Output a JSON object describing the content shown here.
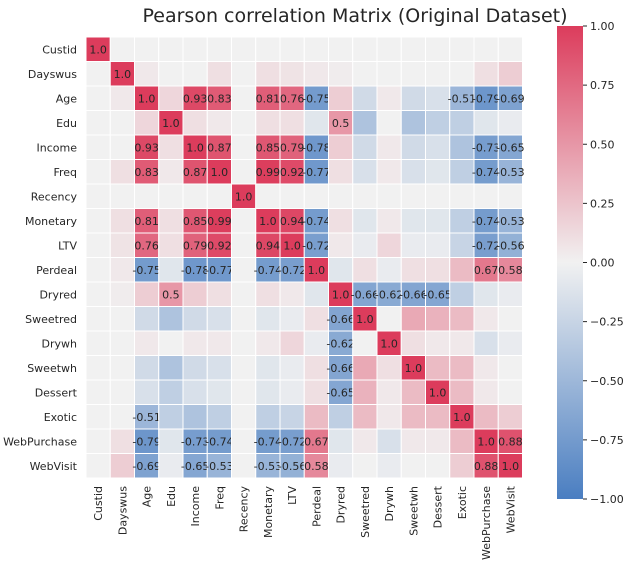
{
  "chart_data": {
    "type": "heatmap",
    "title": "Pearson correlation Matrix (Original Dataset)",
    "labels": [
      "Custid",
      "Dayswus",
      "Age",
      "Edu",
      "Income",
      "Freq",
      "Recency",
      "Monetary",
      "LTV",
      "Perdeal",
      "Dryred",
      "Sweetred",
      "Drywh",
      "Sweetwh",
      "Dessert",
      "Exotic",
      "WebPurchase",
      "WebVisit"
    ],
    "values": [
      [
        1.0,
        0.0,
        0.0,
        0.0,
        0.0,
        0.0,
        0.0,
        0.0,
        0.0,
        0.0,
        0.0,
        0.0,
        0.0,
        0.0,
        0.0,
        0.0,
        0.0,
        0.0
      ],
      [
        0.0,
        1.0,
        0.05,
        0.0,
        0.0,
        0.1,
        0.0,
        0.1,
        0.08,
        0.05,
        0.03,
        0.0,
        0.0,
        0.0,
        0.0,
        0.0,
        0.1,
        0.2
      ],
      [
        0.0,
        0.05,
        1.0,
        0.15,
        0.93,
        0.83,
        0.0,
        0.81,
        0.76,
        -0.75,
        0.2,
        -0.2,
        0.05,
        -0.2,
        -0.15,
        -0.51,
        -0.79,
        -0.69
      ],
      [
        0.0,
        0.0,
        0.15,
        1.0,
        0.1,
        0.05,
        0.0,
        0.1,
        0.1,
        -0.1,
        0.5,
        -0.4,
        0.0,
        -0.4,
        -0.3,
        -0.3,
        -0.1,
        -0.05
      ],
      [
        0.0,
        0.0,
        0.93,
        0.1,
        1.0,
        0.87,
        0.0,
        0.85,
        0.79,
        -0.78,
        0.2,
        -0.2,
        0.05,
        -0.2,
        -0.15,
        -0.4,
        -0.73,
        -0.65
      ],
      [
        0.0,
        0.1,
        0.83,
        0.05,
        0.87,
        1.0,
        0.0,
        0.99,
        0.92,
        -0.77,
        0.1,
        -0.15,
        0.05,
        -0.15,
        -0.1,
        -0.3,
        -0.74,
        -0.53
      ],
      [
        0.0,
        0.0,
        0.0,
        0.0,
        0.0,
        0.0,
        1.0,
        0.0,
        0.0,
        0.0,
        0.0,
        0.0,
        0.0,
        0.0,
        0.0,
        0.0,
        0.0,
        0.0
      ],
      [
        0.0,
        0.1,
        0.81,
        0.1,
        0.85,
        0.99,
        0.0,
        1.0,
        0.94,
        -0.74,
        0.1,
        -0.1,
        0.05,
        -0.1,
        -0.1,
        -0.3,
        -0.74,
        -0.53
      ],
      [
        0.0,
        0.08,
        0.76,
        0.1,
        0.79,
        0.92,
        0.0,
        0.94,
        1.0,
        -0.72,
        0.05,
        -0.05,
        0.15,
        -0.05,
        -0.05,
        -0.25,
        -0.72,
        -0.56
      ],
      [
        0.0,
        0.05,
        -0.75,
        -0.1,
        -0.78,
        -0.77,
        0.0,
        -0.74,
        -0.72,
        1.0,
        -0.1,
        0.1,
        -0.05,
        0.1,
        0.1,
        0.3,
        0.67,
        0.58
      ],
      [
        0.0,
        0.03,
        0.2,
        0.5,
        0.2,
        0.1,
        0.0,
        0.1,
        0.05,
        -0.1,
        1.0,
        -0.66,
        -0.62,
        -0.66,
        -0.65,
        -0.3,
        -0.1,
        -0.05
      ],
      [
        0.0,
        0.0,
        -0.2,
        -0.4,
        -0.2,
        -0.15,
        0.0,
        -0.1,
        -0.05,
        0.1,
        -0.66,
        1.0,
        0.0,
        0.4,
        0.35,
        0.3,
        0.05,
        0.0
      ],
      [
        0.0,
        0.0,
        0.05,
        0.0,
        0.05,
        0.05,
        0.0,
        0.05,
        0.15,
        -0.05,
        -0.62,
        0.0,
        1.0,
        0.1,
        0.05,
        0.05,
        -0.15,
        -0.05
      ],
      [
        0.0,
        0.0,
        -0.2,
        -0.4,
        -0.2,
        -0.15,
        0.0,
        -0.1,
        -0.05,
        0.1,
        -0.66,
        0.4,
        0.1,
        1.0,
        0.3,
        0.3,
        0.05,
        0.0
      ],
      [
        0.0,
        0.0,
        -0.15,
        -0.3,
        -0.15,
        -0.1,
        0.0,
        -0.1,
        -0.05,
        0.1,
        -0.65,
        0.35,
        0.05,
        0.3,
        1.0,
        0.3,
        0.05,
        0.0
      ],
      [
        0.0,
        0.0,
        -0.51,
        -0.3,
        -0.4,
        -0.3,
        0.0,
        -0.3,
        -0.25,
        0.3,
        -0.3,
        0.3,
        0.05,
        0.3,
        0.3,
        1.0,
        0.3,
        0.2
      ],
      [
        0.0,
        0.1,
        -0.79,
        -0.1,
        -0.73,
        -0.74,
        0.0,
        -0.74,
        -0.72,
        0.67,
        -0.1,
        0.05,
        -0.15,
        0.05,
        0.05,
        0.3,
        1.0,
        0.88
      ],
      [
        0.0,
        0.2,
        -0.69,
        -0.05,
        -0.65,
        -0.53,
        0.0,
        -0.53,
        -0.56,
        0.58,
        -0.05,
        0.0,
        -0.05,
        0.0,
        0.0,
        0.2,
        0.88,
        1.0
      ]
    ],
    "annotation_threshold": 0.5,
    "vmin": -1.0,
    "vmax": 1.0,
    "colorbar_ticks": [
      "1.00",
      "0.75",
      "0.50",
      "0.25",
      "0.00",
      "−0.25",
      "−0.50",
      "−0.75",
      "−1.00"
    ],
    "colormap": {
      "low": "#4a7ec1",
      "mid": "#f1f1f1",
      "high": "#dc3c5c"
    },
    "grid": false
  }
}
